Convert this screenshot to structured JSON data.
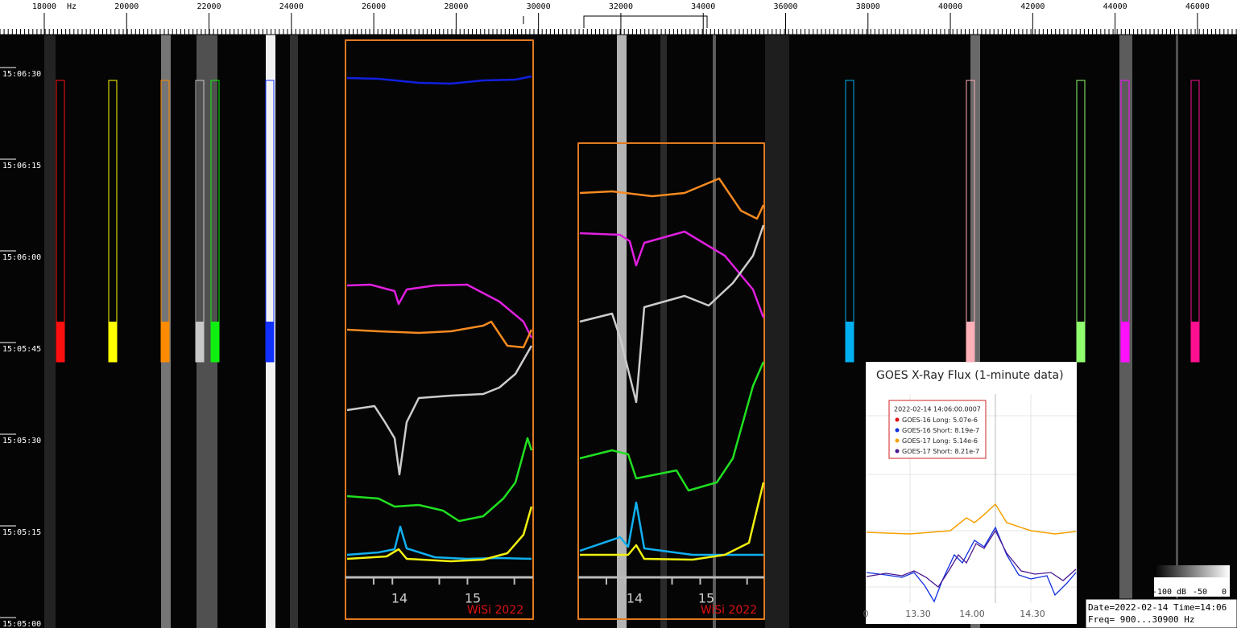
{
  "freq_axis": {
    "unit": "Hz",
    "range": [
      16925,
      46960
    ],
    "ticks": [
      18000,
      20000,
      22000,
      24000,
      26000,
      28000,
      30000,
      32000,
      34000,
      36000,
      38000,
      40000,
      42000,
      44000,
      46000
    ]
  },
  "time_axis": {
    "labels": [
      "15:06:30",
      "15:06:15",
      "15:06:00",
      "15:05:45",
      "15:05:30",
      "15:05:15",
      "15:05:00"
    ]
  },
  "insets": [
    {
      "ticks": [
        "14",
        "15"
      ],
      "watermark": "WiSi 2022"
    },
    {
      "ticks": [
        "14",
        "15"
      ],
      "watermark": "WiSi 2022"
    }
  ],
  "goes": {
    "title": "GOES X-Ray Flux (1-minute data)",
    "tooltip": {
      "time": "2022-02-14 14:06:00.0007",
      "entries": [
        {
          "label": "GOES-16 Long:",
          "value": "5.07e-6",
          "color": "#e01010"
        },
        {
          "label": "GOES-16 Short:",
          "value": "8.19e-7",
          "color": "#1030e0"
        },
        {
          "label": "GOES-17 Long:",
          "value": "5.14e-6",
          "color": "#f5a000"
        },
        {
          "label": "GOES-17 Short:",
          "value": "8.21e-7",
          "color": "#4b1890"
        }
      ]
    },
    "xticks": [
      "0",
      "13.30",
      "14.00",
      "14.30"
    ]
  },
  "colorbar": {
    "labels": [
      "-100 dB",
      "-50",
      "0"
    ]
  },
  "status": {
    "line1": "Date=2022-02-14 Time=14:06",
    "line2": "Freq= 900...30900 Hz"
  }
}
